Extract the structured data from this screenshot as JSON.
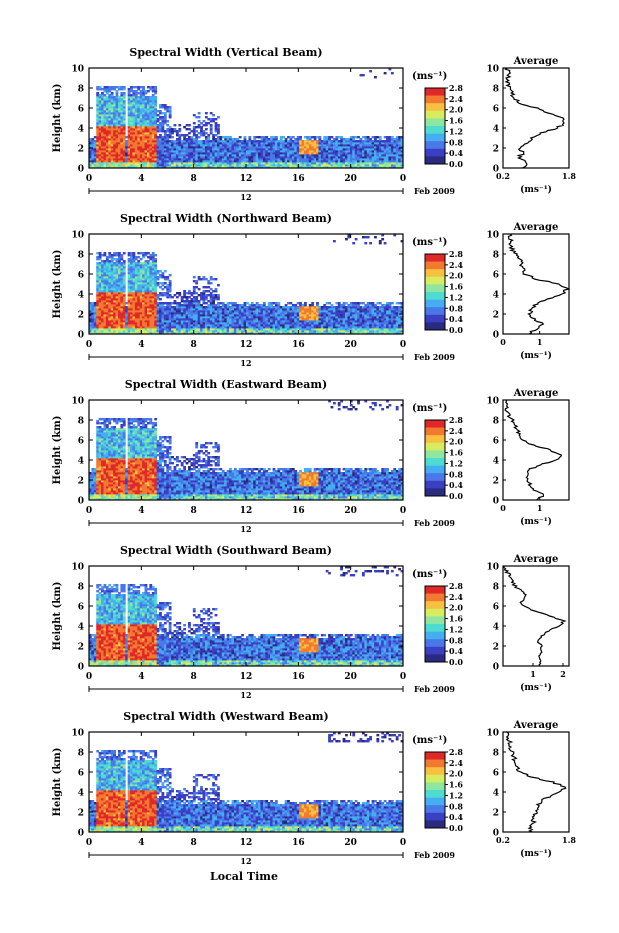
{
  "common": {
    "ylabel": "Height (km)",
    "height_ticks": [
      0,
      2,
      4,
      6,
      8,
      10
    ],
    "time_ticks": [
      0,
      4,
      8,
      12,
      16,
      20,
      0
    ],
    "date_tick_label": "12",
    "month_label": "Feb 2009",
    "xlabel": "Local Time",
    "colorbar_unit": "(ms⁻¹)",
    "colorbar_ticks": [
      "2.8",
      "2.4",
      "2.0",
      "1.6",
      "1.2",
      "0.8",
      "0.4",
      "0.0"
    ],
    "avg_title": "Average",
    "avg_unit": "(ms⁻¹)",
    "colors": {
      "colormap": [
        "#2a2a80",
        "#3b3fc4",
        "#4a78e8",
        "#45aef0",
        "#4fdcd0",
        "#8ee6a0",
        "#d8ec60",
        "#f8c040",
        "#f27a30",
        "#e02828"
      ]
    }
  },
  "panels": [
    {
      "title": "Spectral Width (Vertical Beam)",
      "avg_ticks": [
        "0.2",
        "1.8"
      ],
      "avg_xlim": [
        0.2,
        1.8
      ],
      "avg_profile": [
        0.65,
        0.8,
        0.55,
        0.7,
        0.6,
        0.75,
        0.9,
        1.1,
        1.5,
        1.7,
        1.6,
        1.3,
        1.0,
        0.6,
        0.45,
        0.4,
        0.35,
        0.3,
        0.3,
        0.35,
        0.3
      ]
    },
    {
      "title": "Spectral Width (Northward Beam)",
      "avg_ticks": [
        "0",
        "1"
      ],
      "avg_xlim": [
        0,
        1.8
      ],
      "avg_profile": [
        0.7,
        0.9,
        1.1,
        0.85,
        0.7,
        0.8,
        0.9,
        1.2,
        1.6,
        1.75,
        1.5,
        0.9,
        0.6,
        0.55,
        0.5,
        0.45,
        0.35,
        0.25,
        0.2,
        0.2,
        0.2
      ]
    },
    {
      "title": "Spectral Width (Eastward Beam)",
      "avg_ticks": [
        "0",
        "1"
      ],
      "avg_xlim": [
        0,
        1.8
      ],
      "avg_profile": [
        0.9,
        1.1,
        0.85,
        0.75,
        0.7,
        0.65,
        0.7,
        1.0,
        1.45,
        1.6,
        1.3,
        0.8,
        0.55,
        0.45,
        0.4,
        0.3,
        0.25,
        0.15,
        0.1,
        0.1,
        0.1
      ]
    },
    {
      "title": "Spectral Width (Southward Beam)",
      "avg_ticks": [
        "1",
        "2"
      ],
      "avg_xlim": [
        0,
        2.2
      ],
      "avg_profile": [
        1.2,
        1.3,
        1.25,
        1.3,
        1.25,
        1.2,
        1.3,
        1.5,
        1.9,
        2.0,
        1.6,
        1.05,
        0.7,
        0.6,
        0.75,
        0.6,
        0.4,
        0.3,
        0.25,
        0.1,
        0.05
      ]
    },
    {
      "title": "Spectral Width (Westward Beam)",
      "avg_ticks": [
        "0.2",
        "1.8"
      ],
      "avg_xlim": [
        0.2,
        1.8
      ],
      "avg_profile": [
        0.9,
        0.85,
        0.95,
        0.9,
        1.0,
        1.05,
        1.1,
        1.3,
        1.6,
        1.7,
        1.4,
        0.9,
        0.6,
        0.55,
        0.5,
        0.45,
        0.4,
        0.35,
        0.35,
        0.3,
        0.3
      ]
    }
  ],
  "chart_data": {
    "type": "heatmap",
    "x_range": [
      0,
      24
    ],
    "x_unit": "hours (local time)",
    "y_range": [
      0,
      10
    ],
    "y_unit": "km",
    "color_range": [
      0.0,
      2.8
    ],
    "color_unit": "ms⁻¹",
    "profile_heights": [
      0,
      0.5,
      1,
      1.5,
      2,
      2.5,
      3,
      3.5,
      4,
      4.5,
      5,
      5.5,
      6,
      6.5,
      7,
      7.5,
      8,
      8.5,
      9,
      9.5,
      10
    ]
  }
}
